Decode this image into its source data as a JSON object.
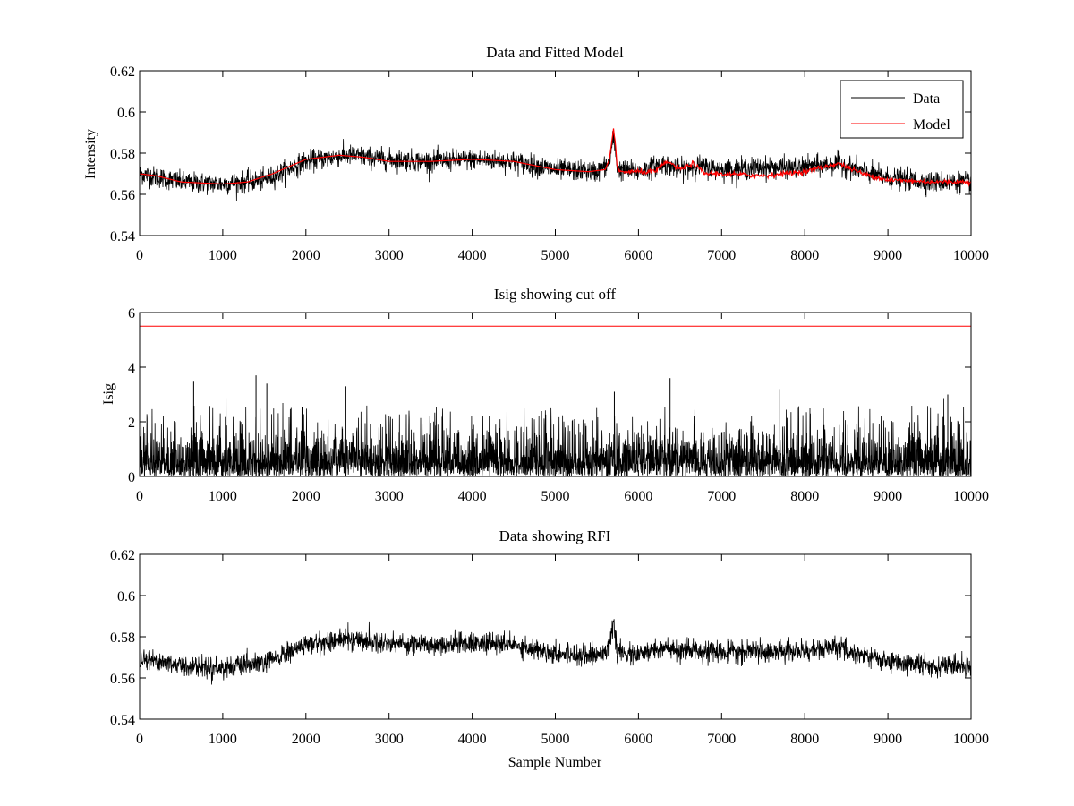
{
  "colors": {
    "data": "#000000",
    "model": "#ff0000",
    "cutoff": "#ff0000",
    "background": "#ffffff"
  },
  "chart_data": [
    {
      "type": "line",
      "title": "Data and Fitted Model",
      "xlabel": "",
      "ylabel": "Intensity",
      "xlim": [
        0,
        10000
      ],
      "ylim": [
        0.54,
        0.62
      ],
      "xticks": [
        "0",
        "1000",
        "2000",
        "3000",
        "4000",
        "5000",
        "6000",
        "7000",
        "8000",
        "9000",
        "10000"
      ],
      "yticks": [
        "0.54",
        "0.56",
        "0.58",
        "0.6",
        "0.62"
      ],
      "legend": {
        "placement": "top-right",
        "entries": [
          "Data",
          "Model"
        ]
      },
      "series": [
        {
          "name": "Data",
          "color": "#000000",
          "noise_amplitude": 0.005,
          "x": [
            0,
            500,
            1000,
            1500,
            2000,
            2500,
            3000,
            3500,
            4000,
            4500,
            5000,
            5500,
            5650,
            5700,
            5750,
            6000,
            6300,
            6500,
            6700,
            7000,
            7500,
            8000,
            8400,
            8700,
            9000,
            9500,
            10000
          ],
          "y": [
            0.57,
            0.566,
            0.565,
            0.567,
            0.576,
            0.579,
            0.577,
            0.576,
            0.577,
            0.576,
            0.572,
            0.571,
            0.575,
            0.588,
            0.572,
            0.571,
            0.575,
            0.572,
            0.574,
            0.572,
            0.573,
            0.573,
            0.575,
            0.571,
            0.568,
            0.566,
            0.566
          ]
        },
        {
          "name": "Model",
          "color": "#ff0000",
          "x": [
            0,
            200,
            500,
            1000,
            1300,
            1600,
            2000,
            2400,
            2700,
            3000,
            3500,
            4000,
            4500,
            5000,
            5400,
            5600,
            5650,
            5700,
            5720,
            5750,
            6000,
            6200,
            6350,
            6500,
            6650,
            6800,
            7000,
            7500,
            8000,
            8400,
            8700,
            9000,
            9500,
            10000
          ],
          "y": [
            0.57,
            0.569,
            0.566,
            0.565,
            0.566,
            0.57,
            0.577,
            0.579,
            0.578,
            0.576,
            0.576,
            0.577,
            0.576,
            0.572,
            0.571,
            0.572,
            0.577,
            0.592,
            0.585,
            0.571,
            0.571,
            0.571,
            0.576,
            0.572,
            0.575,
            0.57,
            0.57,
            0.569,
            0.571,
            0.575,
            0.57,
            0.567,
            0.566,
            0.566
          ]
        }
      ]
    },
    {
      "type": "line",
      "title": "Isig showing cut off",
      "xlabel": "",
      "ylabel": "Isig",
      "xlim": [
        0,
        10000
      ],
      "ylim": [
        0,
        6
      ],
      "xticks": [
        "0",
        "1000",
        "2000",
        "3000",
        "4000",
        "5000",
        "6000",
        "7000",
        "8000",
        "9000",
        "10000"
      ],
      "yticks": [
        "0",
        "2",
        "4",
        "6"
      ],
      "series": [
        {
          "name": "Isig",
          "color": "#000000",
          "distribution": "half-normal noise",
          "typical_max": 2.5,
          "peaks": [
            {
              "x": 650,
              "y": 3.5
            },
            {
              "x": 1400,
              "y": 3.7
            },
            {
              "x": 1530,
              "y": 3.4
            },
            {
              "x": 2480,
              "y": 3.3
            },
            {
              "x": 5710,
              "y": 3.1
            },
            {
              "x": 6380,
              "y": 3.6
            },
            {
              "x": 7700,
              "y": 3.2
            },
            {
              "x": 9720,
              "y": 3.0
            }
          ]
        },
        {
          "name": "Cut off",
          "color": "#ff0000",
          "y": 5.5
        }
      ]
    },
    {
      "type": "line",
      "title": "Data showing RFI",
      "xlabel": "Sample Number",
      "ylabel": "",
      "xlim": [
        0,
        10000
      ],
      "ylim": [
        0.54,
        0.62
      ],
      "xticks": [
        "0",
        "1000",
        "2000",
        "3000",
        "4000",
        "5000",
        "6000",
        "7000",
        "8000",
        "9000",
        "10000"
      ],
      "yticks": [
        "0.54",
        "0.56",
        "0.58",
        "0.6",
        "0.62"
      ],
      "series": [
        {
          "name": "Data",
          "color": "#000000",
          "noise_amplitude": 0.005,
          "x": [
            0,
            500,
            1000,
            1500,
            2000,
            2500,
            3000,
            3500,
            4000,
            4500,
            5000,
            5500,
            5650,
            5700,
            5750,
            6000,
            6300,
            6500,
            6700,
            7000,
            7500,
            8000,
            8400,
            8700,
            9000,
            9500,
            10000
          ],
          "y": [
            0.57,
            0.566,
            0.565,
            0.567,
            0.576,
            0.579,
            0.577,
            0.576,
            0.577,
            0.576,
            0.572,
            0.571,
            0.575,
            0.586,
            0.572,
            0.571,
            0.575,
            0.572,
            0.574,
            0.572,
            0.573,
            0.573,
            0.575,
            0.571,
            0.568,
            0.566,
            0.566
          ]
        }
      ]
    }
  ]
}
